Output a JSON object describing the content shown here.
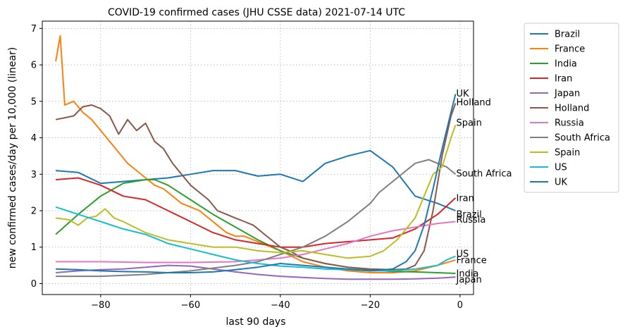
{
  "chart_data": {
    "type": "line",
    "title": "COVID-19 confirmed cases (JHU CSSE data) 2021-07-14 UTC",
    "xlabel": "last 90 days",
    "ylabel": "new confirmed cases/day per 10,000 (linear)",
    "xlim": [
      -93,
      3
    ],
    "ylim": [
      -0.3,
      7.2
    ],
    "xticks": [
      -80,
      -60,
      -40,
      -20,
      0
    ],
    "xtick_labels": [
      "−80",
      "−60",
      "−40",
      "−20",
      "0"
    ],
    "yticks": [
      0,
      1,
      2,
      3,
      4,
      5,
      6,
      7
    ],
    "grid": true,
    "legend_position": "outside-right",
    "series": [
      {
        "name": "Brazil",
        "color": "#1f77b4",
        "label": "Brazil",
        "x": [
          -90,
          -85,
          -80,
          -75,
          -70,
          -65,
          -60,
          -55,
          -50,
          -45,
          -40,
          -35,
          -30,
          -25,
          -20,
          -15,
          -10,
          -5,
          -1
        ],
        "y": [
          3.1,
          3.05,
          2.75,
          2.8,
          2.85,
          2.9,
          3.0,
          3.1,
          3.1,
          2.95,
          3.0,
          2.8,
          3.3,
          3.5,
          3.65,
          3.2,
          2.4,
          2.2,
          2.0
        ]
      },
      {
        "name": "France",
        "color": "#ff7f0e",
        "label": "France",
        "x": [
          -90,
          -89,
          -88,
          -86,
          -84,
          -82,
          -80,
          -78,
          -76,
          -74,
          -72,
          -70,
          -68,
          -66,
          -64,
          -62,
          -60,
          -58,
          -56,
          -54,
          -52,
          -50,
          -48,
          -46,
          -44,
          -42,
          -40,
          -35,
          -30,
          -25,
          -20,
          -15,
          -10,
          -5,
          -1
        ],
        "y": [
          6.1,
          6.8,
          4.9,
          5.0,
          4.7,
          4.5,
          4.2,
          3.9,
          3.6,
          3.3,
          3.1,
          2.9,
          2.7,
          2.6,
          2.4,
          2.2,
          2.1,
          2.0,
          1.8,
          1.6,
          1.4,
          1.3,
          1.3,
          1.2,
          1.1,
          1.0,
          0.9,
          0.6,
          0.45,
          0.35,
          0.3,
          0.3,
          0.35,
          0.5,
          0.65
        ]
      },
      {
        "name": "India",
        "color": "#2ca02c",
        "label": "India",
        "x": [
          -90,
          -85,
          -80,
          -75,
          -70,
          -68,
          -65,
          -60,
          -55,
          -50,
          -45,
          -40,
          -35,
          -30,
          -25,
          -20,
          -15,
          -10,
          -5,
          -1
        ],
        "y": [
          1.35,
          1.9,
          2.4,
          2.75,
          2.85,
          2.85,
          2.7,
          2.3,
          1.9,
          1.55,
          1.2,
          0.9,
          0.7,
          0.55,
          0.45,
          0.38,
          0.33,
          0.32,
          0.3,
          0.28
        ]
      },
      {
        "name": "Iran",
        "color": "#d62728",
        "label": "Iran",
        "x": [
          -90,
          -85,
          -80,
          -75,
          -70,
          -65,
          -60,
          -55,
          -50,
          -45,
          -40,
          -35,
          -30,
          -25,
          -20,
          -15,
          -10,
          -5,
          -1
        ],
        "y": [
          2.85,
          2.9,
          2.7,
          2.4,
          2.3,
          2.0,
          1.7,
          1.4,
          1.2,
          1.1,
          1.0,
          1.0,
          1.1,
          1.15,
          1.2,
          1.25,
          1.5,
          1.9,
          2.35
        ]
      },
      {
        "name": "Japan",
        "color": "#9467bd",
        "label": "Japan",
        "x": [
          -90,
          -85,
          -80,
          -75,
          -70,
          -65,
          -60,
          -55,
          -50,
          -45,
          -40,
          -35,
          -30,
          -25,
          -20,
          -15,
          -10,
          -5,
          -1
        ],
        "y": [
          0.3,
          0.35,
          0.38,
          0.4,
          0.45,
          0.5,
          0.48,
          0.4,
          0.32,
          0.25,
          0.2,
          0.17,
          0.14,
          0.12,
          0.12,
          0.12,
          0.13,
          0.15,
          0.18
        ]
      },
      {
        "name": "Holland",
        "color": "#8c564b",
        "label": "Holland",
        "x": [
          -90,
          -88,
          -86,
          -84,
          -82,
          -80,
          -78,
          -76,
          -74,
          -72,
          -70,
          -68,
          -66,
          -64,
          -62,
          -60,
          -58,
          -56,
          -54,
          -52,
          -50,
          -48,
          -46,
          -44,
          -42,
          -40,
          -38,
          -35,
          -30,
          -25,
          -20,
          -15,
          -12,
          -10,
          -8,
          -6,
          -4,
          -2,
          -1
        ],
        "y": [
          4.5,
          4.55,
          4.6,
          4.85,
          4.9,
          4.8,
          4.6,
          4.1,
          4.5,
          4.2,
          4.4,
          3.9,
          3.7,
          3.3,
          3.0,
          2.7,
          2.5,
          2.3,
          2.0,
          1.9,
          1.8,
          1.7,
          1.6,
          1.4,
          1.2,
          1.0,
          0.9,
          0.7,
          0.55,
          0.45,
          0.4,
          0.38,
          0.4,
          0.5,
          0.9,
          2.0,
          3.5,
          4.6,
          4.95
        ]
      },
      {
        "name": "Russia",
        "color": "#e377c2",
        "label": "Russia",
        "x": [
          -90,
          -80,
          -70,
          -60,
          -50,
          -45,
          -40,
          -35,
          -30,
          -25,
          -20,
          -15,
          -10,
          -5,
          -1
        ],
        "y": [
          0.6,
          0.6,
          0.58,
          0.58,
          0.6,
          0.65,
          0.7,
          0.8,
          0.95,
          1.1,
          1.3,
          1.45,
          1.55,
          1.65,
          1.7
        ]
      },
      {
        "name": "South Africa",
        "color": "#7f7f7f",
        "label": "South Africa",
        "x": [
          -90,
          -80,
          -70,
          -60,
          -50,
          -45,
          -40,
          -35,
          -30,
          -25,
          -20,
          -18,
          -15,
          -12,
          -10,
          -7,
          -5,
          -3,
          -1
        ],
        "y": [
          0.2,
          0.2,
          0.25,
          0.35,
          0.5,
          0.6,
          0.8,
          1.0,
          1.3,
          1.7,
          2.2,
          2.5,
          2.8,
          3.1,
          3.3,
          3.4,
          3.3,
          3.2,
          3.0
        ]
      },
      {
        "name": "Spain",
        "color": "#bcbd22",
        "label": "Spain",
        "x": [
          -90,
          -87,
          -85,
          -83,
          -81,
          -79,
          -77,
          -75,
          -70,
          -65,
          -60,
          -55,
          -50,
          -45,
          -40,
          -35,
          -30,
          -25,
          -20,
          -17,
          -14,
          -12,
          -10,
          -8,
          -6,
          -4,
          -2,
          -1
        ],
        "y": [
          1.8,
          1.75,
          1.6,
          1.8,
          1.85,
          2.05,
          1.8,
          1.7,
          1.4,
          1.2,
          1.1,
          1.0,
          1.0,
          0.9,
          0.85,
          0.9,
          0.8,
          0.7,
          0.75,
          0.9,
          1.2,
          1.5,
          1.8,
          2.4,
          3.0,
          3.2,
          4.0,
          4.35
        ]
      },
      {
        "name": "US",
        "color": "#17becf",
        "label": "US",
        "x": [
          -90,
          -85,
          -80,
          -75,
          -70,
          -65,
          -60,
          -55,
          -50,
          -45,
          -40,
          -35,
          -30,
          -25,
          -20,
          -15,
          -10,
          -5,
          -3,
          -1
        ],
        "y": [
          2.1,
          1.9,
          1.7,
          1.5,
          1.35,
          1.1,
          0.95,
          0.8,
          0.65,
          0.55,
          0.48,
          0.45,
          0.4,
          0.38,
          0.35,
          0.35,
          0.4,
          0.5,
          0.65,
          0.75
        ]
      },
      {
        "name": "UK",
        "color": "#1f77b4",
        "label": "UK",
        "x": [
          -90,
          -85,
          -80,
          -75,
          -70,
          -65,
          -60,
          -55,
          -50,
          -45,
          -40,
          -35,
          -30,
          -25,
          -20,
          -15,
          -12,
          -10,
          -8,
          -6,
          -4,
          -2,
          -1
        ],
        "y": [
          0.4,
          0.38,
          0.35,
          0.33,
          0.32,
          0.3,
          0.3,
          0.32,
          0.38,
          0.45,
          0.55,
          0.5,
          0.45,
          0.4,
          0.35,
          0.4,
          0.6,
          0.9,
          1.6,
          2.6,
          3.7,
          4.7,
          5.2
        ]
      }
    ],
    "end_labels": [
      {
        "text": "UK",
        "y": 5.22
      },
      {
        "text": "Holland",
        "y": 4.98
      },
      {
        "text": "Spain",
        "y": 4.42
      },
      {
        "text": "South Africa",
        "y": 3.02
      },
      {
        "text": "Iran",
        "y": 2.35
      },
      {
        "text": "Brazil",
        "y": 1.9
      },
      {
        "text": "Russia",
        "y": 1.76
      },
      {
        "text": "US",
        "y": 0.82
      },
      {
        "text": "France",
        "y": 0.65
      },
      {
        "text": "India",
        "y": 0.28
      },
      {
        "text": "Japan",
        "y": 0.12
      }
    ]
  }
}
